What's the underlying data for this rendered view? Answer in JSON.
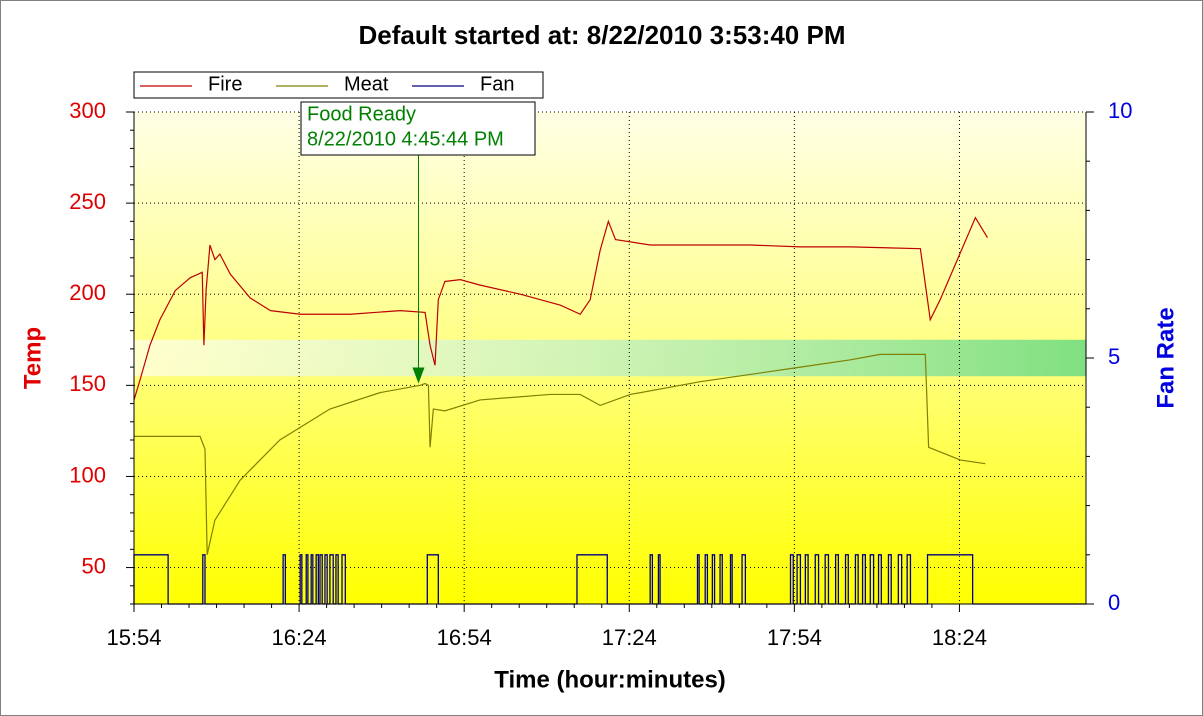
{
  "chart_data": {
    "type": "line",
    "title": "Default started at: 8/22/2010 3:53:40 PM",
    "xlabel": "Time (hour:minutes)",
    "ylabel": "Temp",
    "y2label": "Fan Rate",
    "xlim": [
      954,
      1127
    ],
    "xticks": [
      {
        "value": 954,
        "label": "15:54"
      },
      {
        "value": 984,
        "label": "16:24"
      },
      {
        "value": 1014,
        "label": "16:54"
      },
      {
        "value": 1044,
        "label": "17:24"
      },
      {
        "value": 1074,
        "label": "17:54"
      },
      {
        "value": 1104,
        "label": "18:24"
      }
    ],
    "ylim": [
      30,
      300
    ],
    "yticks": [
      50,
      100,
      150,
      200,
      250,
      300
    ],
    "y2lim": [
      0,
      10
    ],
    "y2ticks": [
      0,
      5,
      10
    ],
    "grid": true,
    "legend": "top-left",
    "target_band": [
      155,
      175
    ],
    "series": [
      {
        "name": "Fire",
        "color": "#c00000",
        "x": [
          954,
          955.1,
          956.9,
          958.7,
          961.5,
          964.2,
          966.4,
          966.7,
          967.1,
          967.8,
          968.7,
          969.6,
          971.5,
          975.1,
          978.8,
          984.2,
          993.3,
          1002.4,
          1006.9,
          1007.8,
          1008.7,
          1009.3,
          1010.5,
          1013.3,
          1016.9,
          1024.2,
          1031.5,
          1035.1,
          1036.9,
          1038.7,
          1040.2,
          1041.5,
          1047.8,
          1056.9,
          1066,
          1075.1,
          1084.2,
          1096.9,
          1098.7,
          1100.5,
          1106.9,
          1109.1
        ],
        "values": [
          142,
          153,
          172,
          186,
          202,
          209,
          212,
          172,
          202,
          227,
          219,
          222,
          211,
          198,
          191,
          189,
          189,
          191,
          190,
          172,
          161,
          197,
          207,
          208,
          205,
          200,
          194,
          189,
          197,
          224,
          240,
          230,
          227,
          227,
          227,
          226,
          226,
          225,
          186,
          197,
          242,
          231
        ]
      },
      {
        "name": "Meat",
        "color": "#808000",
        "x": [
          954,
          966,
          966.9,
          967.3,
          968.7,
          973.3,
          980.5,
          989.6,
          998.7,
          1006,
          1006.9,
          1007.5,
          1007.8,
          1008.4,
          1010.5,
          1016.9,
          1029.6,
          1035.1,
          1038.7,
          1044.2,
          1056.9,
          1075.1,
          1084.2,
          1089.6,
          1097.8,
          1098.4,
          1104.2,
          1108.7
        ],
        "values": [
          122,
          122,
          115,
          57,
          76,
          98,
          120,
          137,
          146,
          150,
          151,
          150,
          116,
          137,
          136,
          142,
          145,
          145,
          139,
          145,
          152,
          160,
          164,
          167,
          167,
          116,
          109,
          107
        ]
      },
      {
        "name": "Fan",
        "color": "#000080",
        "axis": "y2",
        "step": true,
        "x": [
          954,
          960.2,
          966.5,
          966.9,
          981.1,
          981.5,
          984.2,
          984.5,
          985.3,
          985.6,
          986.2,
          986.5,
          987.1,
          987.5,
          987.8,
          988.2,
          988.7,
          989.1,
          989.6,
          990.2,
          990.7,
          991.1,
          991.8,
          992.4,
          1007.3,
          1009.3,
          1034.5,
          1040,
          1047.8,
          1048.2,
          1049.3,
          1049.6,
          1056.4,
          1056.7,
          1057.8,
          1058.2,
          1059.1,
          1059.5,
          1060.5,
          1060.9,
          1062.4,
          1062.7,
          1064.5,
          1065.1,
          1073.3,
          1073.8,
          1074.5,
          1075.1,
          1076,
          1076.5,
          1077.8,
          1078.4,
          1079.6,
          1080.2,
          1081.5,
          1082,
          1083.3,
          1083.8,
          1085.1,
          1085.6,
          1086.4,
          1086.9,
          1087.8,
          1088.4,
          1089.3,
          1089.8,
          1091.1,
          1091.6,
          1092.9,
          1093.5,
          1094.5,
          1095.1,
          1098.2,
          1106.4
        ],
        "values": [
          1,
          0,
          1,
          0,
          1,
          0,
          1,
          0,
          1,
          0,
          1,
          0,
          1,
          0,
          1,
          0,
          1,
          0,
          1,
          0,
          1,
          0,
          1,
          0,
          1,
          0,
          1,
          0,
          1,
          0,
          1,
          0,
          1,
          0,
          1,
          0,
          1,
          0,
          1,
          0,
          1,
          0,
          1,
          0,
          1,
          0,
          1,
          0,
          1,
          0,
          1,
          0,
          1,
          0,
          1,
          0,
          1,
          0,
          1,
          0,
          1,
          0,
          1,
          0,
          1,
          0,
          1,
          0,
          1,
          0,
          1,
          0,
          1,
          0
        ]
      }
    ],
    "annotation": {
      "text": [
        "Food Ready",
        "8/22/2010 4:45:44 PM"
      ],
      "x": 1005.7,
      "y": 151,
      "color": "#008000"
    }
  }
}
